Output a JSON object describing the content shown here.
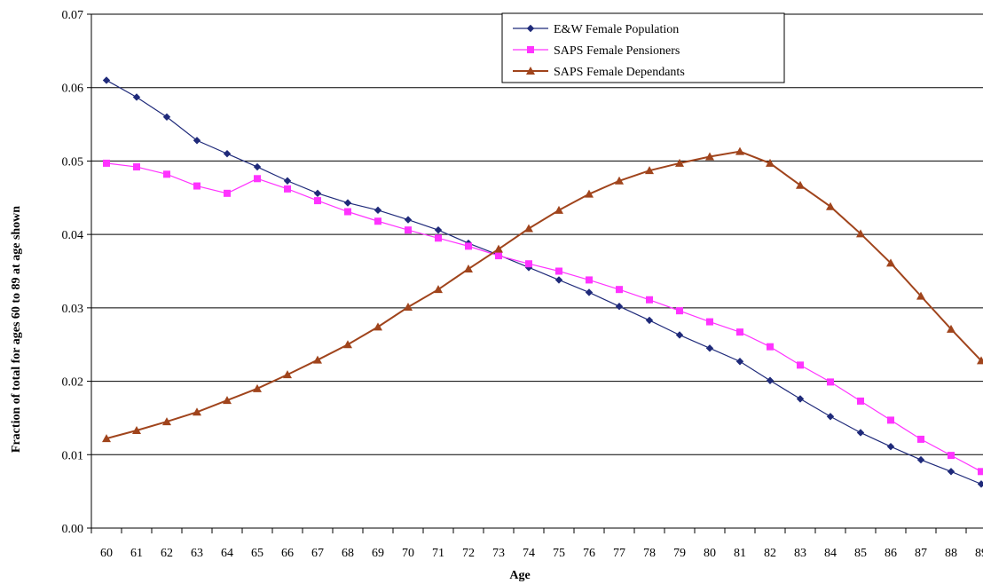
{
  "chart_data": {
    "type": "line",
    "xlabel": "Age",
    "ylabel": "Fraction of total for ages 60 to 89 at age shown",
    "x": [
      60,
      61,
      62,
      63,
      64,
      65,
      66,
      67,
      68,
      69,
      70,
      71,
      72,
      73,
      74,
      75,
      76,
      77,
      78,
      79,
      80,
      81,
      82,
      83,
      84,
      85,
      86,
      87,
      88,
      89
    ],
    "y_ticks": [
      "0.00",
      "0.01",
      "0.02",
      "0.03",
      "0.04",
      "0.05",
      "0.06",
      "0.07"
    ],
    "x_ticks": [
      "60",
      "61",
      "62",
      "63",
      "64",
      "65",
      "66",
      "67",
      "68",
      "69",
      "70",
      "71",
      "72",
      "73",
      "74",
      "75",
      "76",
      "77",
      "78",
      "79",
      "80",
      "81",
      "82",
      "83",
      "84",
      "85",
      "86",
      "87",
      "88",
      "89"
    ],
    "ylim": [
      0,
      0.07
    ],
    "grid": "horizontal",
    "legend_position": "top-center",
    "series": [
      {
        "name": "E&W Female Population",
        "color": "#1f2a7a",
        "marker": "diamond",
        "values": [
          0.061,
          0.0587,
          0.056,
          0.0528,
          0.051,
          0.0492,
          0.0473,
          0.0456,
          0.0443,
          0.0433,
          0.042,
          0.0406,
          0.0388,
          0.0372,
          0.0355,
          0.0338,
          0.0321,
          0.0302,
          0.0283,
          0.0263,
          0.0245,
          0.0227,
          0.0201,
          0.0176,
          0.0152,
          0.013,
          0.0111,
          0.0093,
          0.0077,
          0.006
        ]
      },
      {
        "name": "SAPS Female Pensioners",
        "color": "#ff33ff",
        "marker": "square",
        "values": [
          0.0497,
          0.0492,
          0.0482,
          0.0466,
          0.0456,
          0.0476,
          0.0462,
          0.0446,
          0.0431,
          0.0418,
          0.0406,
          0.0395,
          0.0384,
          0.0371,
          0.036,
          0.035,
          0.0338,
          0.0325,
          0.0311,
          0.0296,
          0.0281,
          0.0267,
          0.0247,
          0.0222,
          0.0199,
          0.0173,
          0.0147,
          0.0121,
          0.0099,
          0.0077
        ]
      },
      {
        "name": "SAPS Female Dependants",
        "color": "#a0441c",
        "marker": "triangle",
        "values": [
          0.0122,
          0.0133,
          0.0145,
          0.0158,
          0.0174,
          0.019,
          0.0209,
          0.0229,
          0.025,
          0.0274,
          0.0301,
          0.0325,
          0.0353,
          0.038,
          0.0408,
          0.0433,
          0.0455,
          0.0473,
          0.0487,
          0.0497,
          0.0506,
          0.0513,
          0.0497,
          0.0467,
          0.0438,
          0.0401,
          0.0361,
          0.0316,
          0.0271,
          0.0228
        ]
      }
    ]
  }
}
